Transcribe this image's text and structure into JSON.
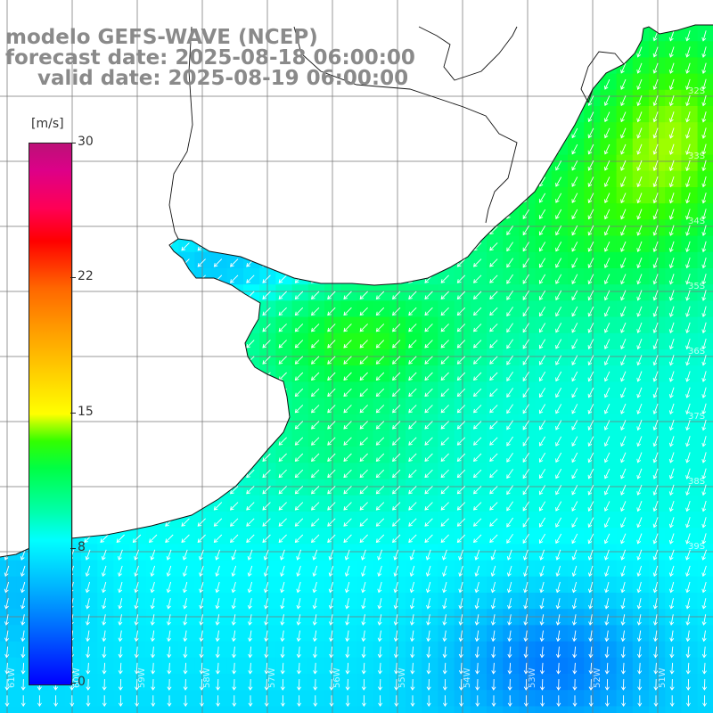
{
  "title": {
    "line1": "modelo GEFS-WAVE (NCEP)",
    "line2": "forecast date: 2025-08-18 06:00:00",
    "line3": "valid date: 2025-08-19 06:00:00"
  },
  "colorbar": {
    "unit": "[m/s]",
    "min": 0,
    "max": 30,
    "ticks": [
      "30",
      "22",
      "15",
      "8",
      "0"
    ]
  },
  "map": {
    "lat_labels": [
      "32S",
      "33S",
      "34S",
      "35S",
      "36S",
      "37S",
      "38S",
      "39S"
    ],
    "lon_labels": [
      "61W",
      "60W",
      "59W",
      "58W",
      "57W",
      "56W",
      "55W",
      "54W",
      "53W",
      "52W",
      "51W"
    ]
  }
}
